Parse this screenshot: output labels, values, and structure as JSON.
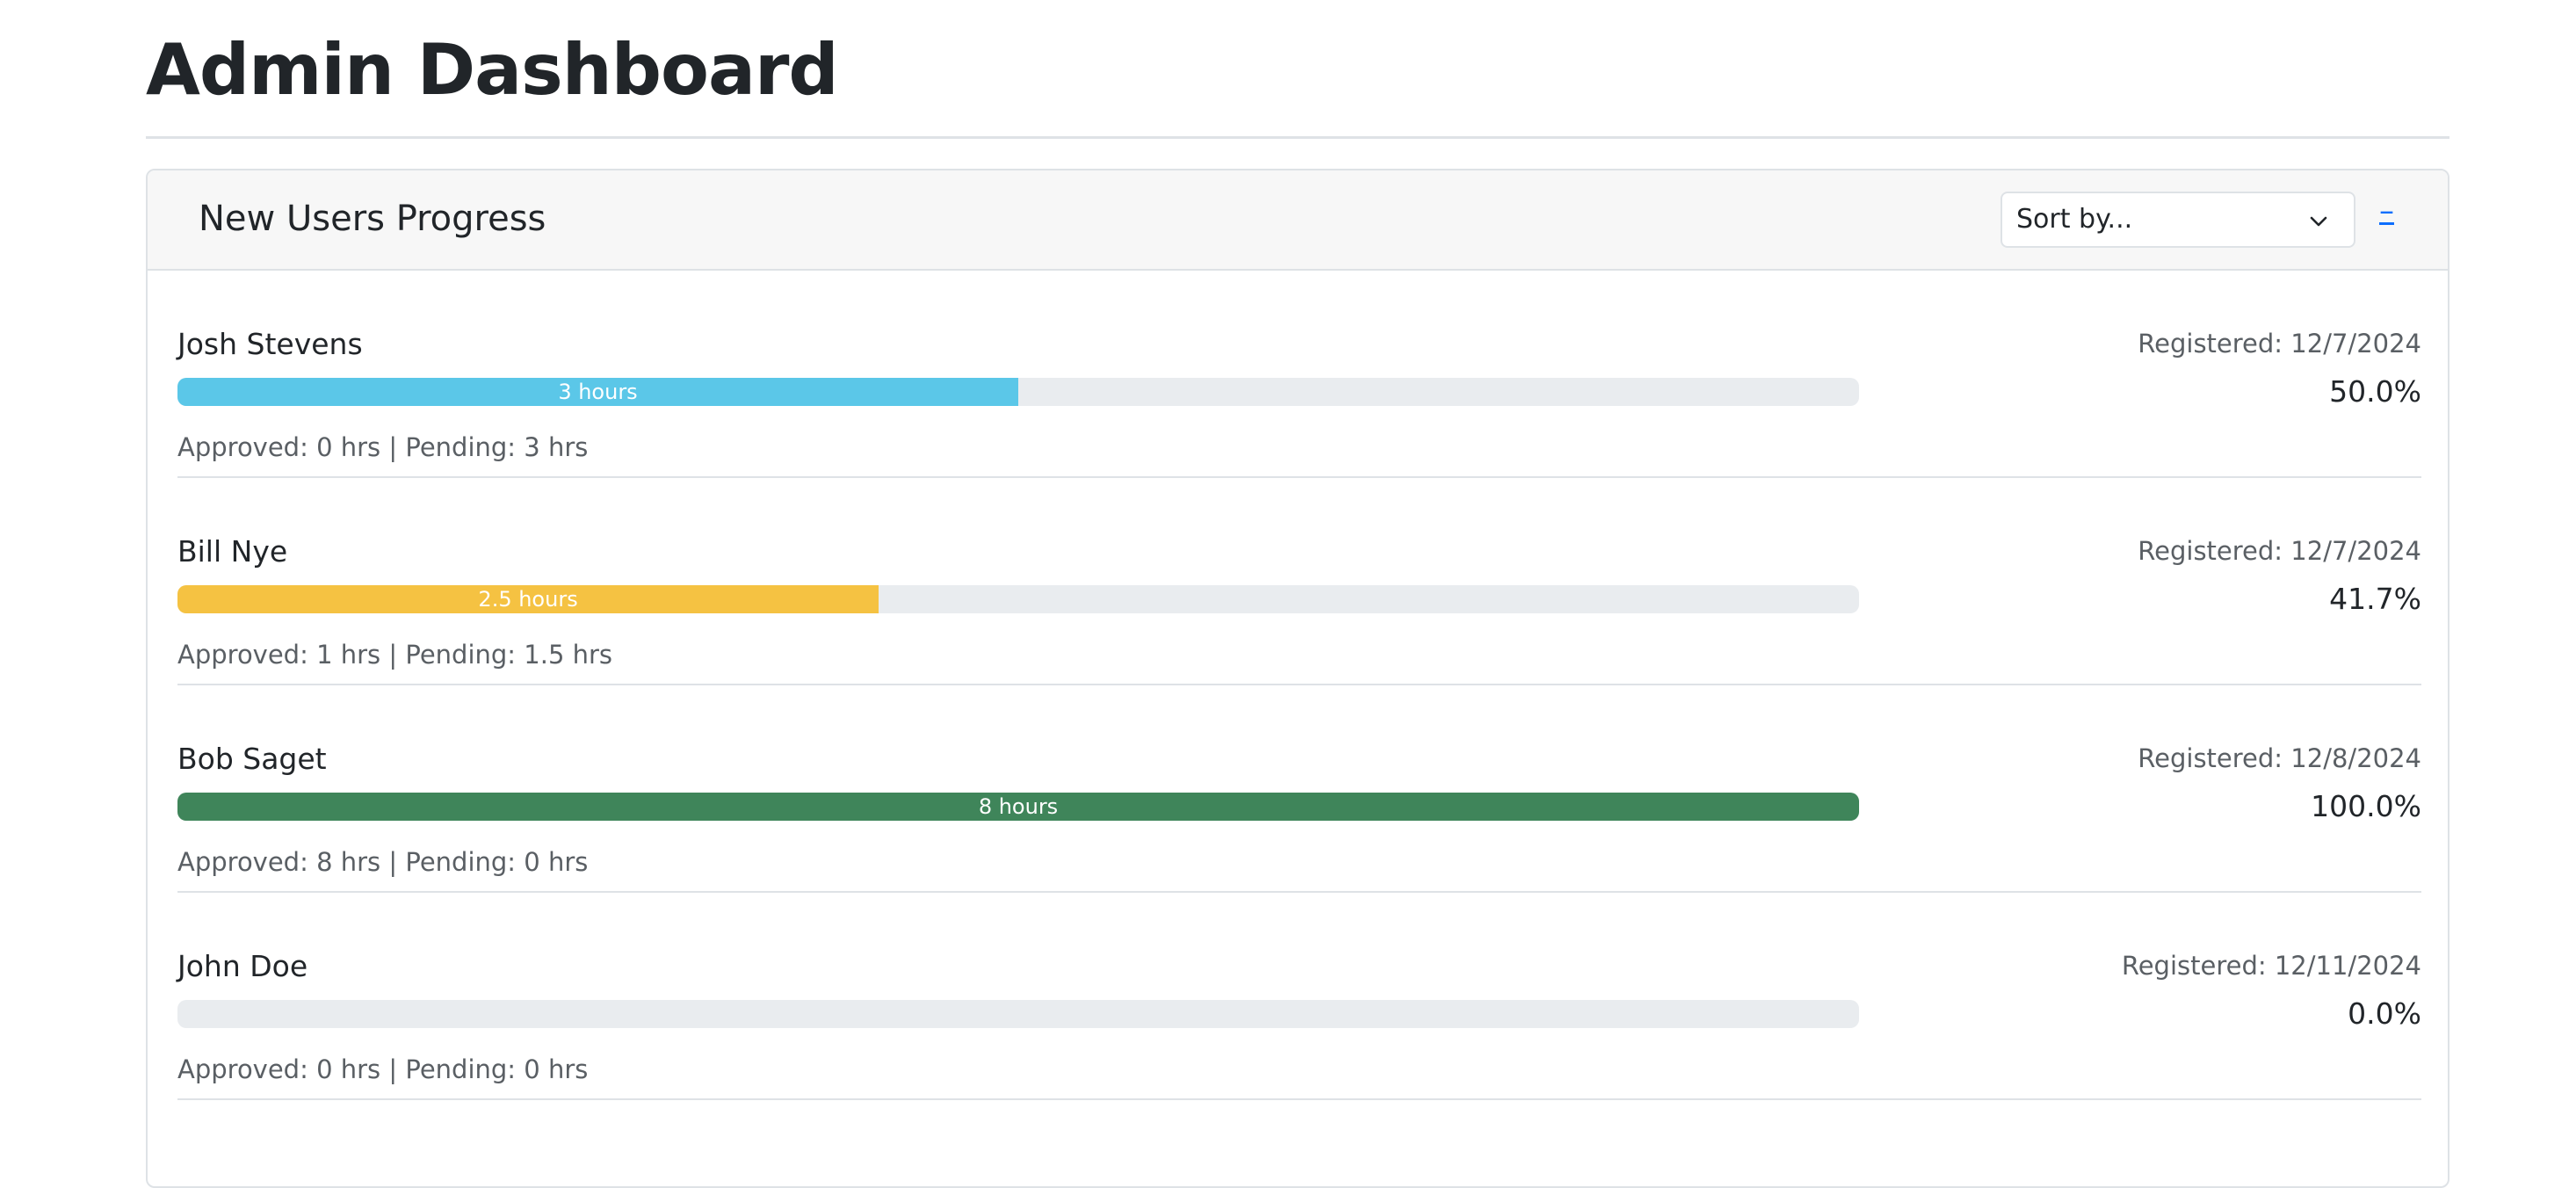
{
  "page": {
    "title": "Admin Dashboard"
  },
  "card": {
    "title": "New Users Progress",
    "sort_placeholder": "Sort by...",
    "collapse_label": "–"
  },
  "colors": {
    "info": "#5bc7e8",
    "warning": "#f5c242",
    "success": "#3f855a",
    "track": "#e9ecef"
  },
  "users": [
    {
      "name": "Josh Stevens",
      "registered": "Registered: 12/7/2024",
      "percent_label": "50.0%",
      "progress": 0.5,
      "bar_label": "3 hours",
      "bar_color": "#5bc7e8",
      "summary": "Approved: 0 hrs | Pending: 3 hrs"
    },
    {
      "name": "Bill Nye",
      "registered": "Registered: 12/7/2024",
      "percent_label": "41.7%",
      "progress": 0.417,
      "bar_label": "2.5 hours",
      "bar_color": "#f5c242",
      "summary": "Approved: 1 hrs | Pending: 1.5 hrs"
    },
    {
      "name": "Bob Saget",
      "registered": "Registered: 12/8/2024",
      "percent_label": "100.0%",
      "progress": 1.0,
      "bar_label": "8 hours",
      "bar_color": "#3f855a",
      "summary": "Approved: 8 hrs | Pending: 0 hrs"
    },
    {
      "name": "John Doe",
      "registered": "Registered: 12/11/2024",
      "percent_label": "0.0%",
      "progress": 0.0,
      "bar_label": "",
      "bar_color": "#5bc7e8",
      "summary": "Approved: 0 hrs | Pending: 0 hrs"
    }
  ]
}
